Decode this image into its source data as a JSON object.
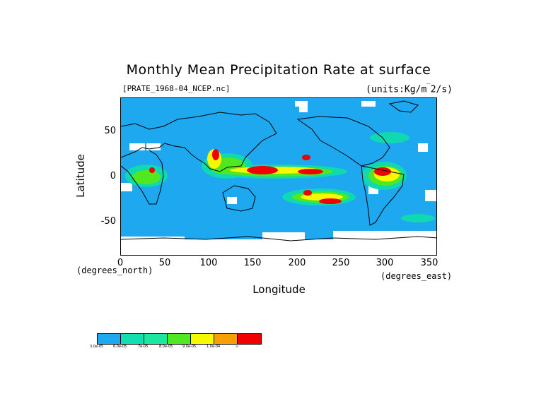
{
  "map": {
    "title": "Monthly Mean Precipitation Rate at surface",
    "file_label": "[PRATE_1968-04_NCEP.nc]",
    "units_label": "(units:Kg/m^2/s)",
    "x_axis": {
      "label": "Longitude",
      "unit_note": "(degrees_east)",
      "ticks": [
        "0",
        "50",
        "100",
        "150",
        "200",
        "250",
        "300",
        "350"
      ],
      "range": [
        0,
        360
      ]
    },
    "y_axis": {
      "label": "Latitude",
      "unit_note": "(degrees_north)",
      "ticks": [
        "50",
        "0",
        "-50"
      ],
      "range": [
        -90,
        90
      ]
    },
    "legend": {
      "colors": [
        "#1ea8ef",
        "#10e0b0",
        "#18e8a0",
        "#50e820",
        "#f8f800",
        "#f8a000",
        "#f00000"
      ],
      "labels": [
        "3.0e-05",
        "6.0e-05",
        "7e-05",
        "8.0e-05",
        "9.0e-05",
        "1.0e-04",
        "∞"
      ]
    },
    "colors": {
      "ocean_base": "#1ea8ef",
      "missing": "#ffffff",
      "low": "#10d8b0",
      "mid": "#50e820",
      "high": "#f8f800",
      "higher": "#f8a000",
      "highest": "#f00000",
      "coast": "#000000"
    }
  },
  "chart_data": {
    "type": "heatmap",
    "title": "Monthly Mean Precipitation Rate at surface",
    "xlabel": "Longitude",
    "ylabel": "Latitude",
    "xlim": [
      0,
      360
    ],
    "ylim": [
      -90,
      90
    ],
    "units": "Kg/m^2/s",
    "features": [
      {
        "region": "central Pacific ITCZ",
        "lon": [
          145,
          250
        ],
        "lat": [
          2,
          10
        ],
        "level": "1.0e-04"
      },
      {
        "region": "South Pacific convergence zone",
        "lon": [
          200,
          260
        ],
        "lat": [
          -35,
          -15
        ],
        "level": "1.0e-04"
      },
      {
        "region": "northern South America",
        "lon": [
          285,
          320
        ],
        "lat": [
          -10,
          10
        ],
        "level": "1.0e-04"
      },
      {
        "region": "central Africa",
        "lon": [
          10,
          45
        ],
        "lat": [
          -10,
          10
        ],
        "level": "1.0e-04"
      },
      {
        "region": "Maritime Continent",
        "lon": [
          90,
          150
        ],
        "lat": [
          -10,
          20
        ],
        "level": "9.0e-05"
      },
      {
        "region": "Antarctic missing",
        "lon": [
          0,
          360
        ],
        "lat": [
          -90,
          -72
        ],
        "level": "missing"
      }
    ]
  }
}
